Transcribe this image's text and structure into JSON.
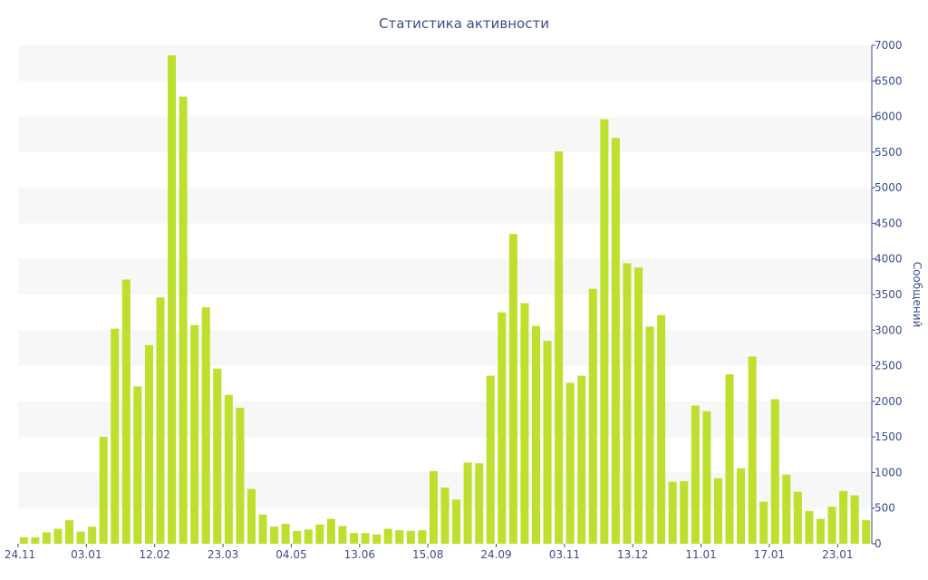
{
  "chart_data": {
    "type": "bar",
    "title": "Статистика активности",
    "ylabel": "Сообщений",
    "ylim": [
      0,
      7000
    ],
    "y_ticks": [
      0,
      500,
      1000,
      1500,
      2000,
      2500,
      3000,
      3500,
      4000,
      4500,
      5000,
      5500,
      6000,
      6500,
      7000
    ],
    "x_tick_labels": [
      "24.11",
      "03.01",
      "12.02",
      "23.03",
      "04.05",
      "13.06",
      "15.08",
      "24.09",
      "03.11",
      "13.12",
      "11.01",
      "17.01",
      "23.01"
    ],
    "x_tick_bar_index": [
      0,
      6,
      12,
      18,
      24,
      30,
      36,
      42,
      48,
      54,
      60,
      66,
      72
    ],
    "values": [
      90,
      90,
      160,
      210,
      330,
      170,
      240,
      1500,
      3020,
      3710,
      2210,
      2790,
      3460,
      6860,
      6280,
      3070,
      3320,
      2460,
      2090,
      1910,
      770,
      410,
      240,
      280,
      180,
      200,
      270,
      350,
      250,
      150,
      150,
      130,
      210,
      190,
      180,
      190,
      1020,
      790,
      620,
      1140,
      1130,
      2360,
      3250,
      4350,
      3380,
      3060,
      2850,
      5510,
      2260,
      2360,
      3580,
      5960,
      5700,
      3940,
      3880,
      3050,
      3210,
      870,
      880,
      1940,
      1860,
      920,
      2380,
      1060,
      2630,
      590,
      2030,
      970,
      730,
      460,
      350,
      520,
      740,
      680,
      330
    ],
    "grid": "horizontal-bands",
    "legend": "none"
  }
}
